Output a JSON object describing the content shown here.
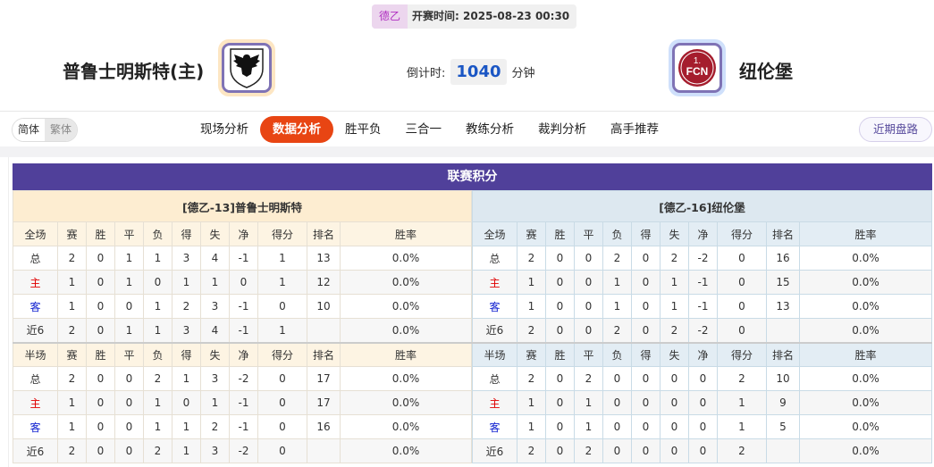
{
  "header": {
    "league": "德乙",
    "kickoff_label": "开赛时间:",
    "kickoff": "2025-08-23 00:30",
    "home": {
      "name": "普鲁士明斯特(主)",
      "logo": "eagle-shield-logo"
    },
    "away": {
      "name": "纽伦堡",
      "logo": "1fcn-logo",
      "logo_text": "1.FCN"
    },
    "countdown_label": "倒计时:",
    "countdown_value": "1040",
    "countdown_unit": "分钟"
  },
  "nav": {
    "lang": [
      "简体",
      "繁体"
    ],
    "tabs": [
      "现场分析",
      "数据分析",
      "胜平负",
      "三合一",
      "教练分析",
      "裁判分析",
      "高手推荐"
    ],
    "active_tab": "数据分析",
    "recent": "近期盘路"
  },
  "colors": {
    "accent": "#e84513",
    "title_bar": "#50409a",
    "home_label": "#e00000",
    "away_label": "#1020d0"
  },
  "standings": {
    "title": "联赛积分",
    "columns_full": [
      "全场",
      "赛",
      "胜",
      "平",
      "负",
      "得",
      "失",
      "净",
      "得分",
      "排名",
      "胜率"
    ],
    "columns_half": [
      "半场",
      "赛",
      "胜",
      "平",
      "负",
      "得",
      "失",
      "净",
      "得分",
      "排名",
      "胜率"
    ],
    "home": {
      "header": "[德乙-13]普鲁士明斯特",
      "full": [
        [
          "总",
          "2",
          "0",
          "1",
          "1",
          "3",
          "4",
          "-1",
          "1",
          "13",
          "0.0%"
        ],
        [
          "主",
          "1",
          "0",
          "1",
          "0",
          "1",
          "1",
          "0",
          "1",
          "12",
          "0.0%"
        ],
        [
          "客",
          "1",
          "0",
          "0",
          "1",
          "2",
          "3",
          "-1",
          "0",
          "10",
          "0.0%"
        ],
        [
          "近6",
          "2",
          "0",
          "1",
          "1",
          "3",
          "4",
          "-1",
          "1",
          "",
          "0.0%"
        ]
      ],
      "half": [
        [
          "总",
          "2",
          "0",
          "0",
          "2",
          "1",
          "3",
          "-2",
          "0",
          "17",
          "0.0%"
        ],
        [
          "主",
          "1",
          "0",
          "0",
          "1",
          "0",
          "1",
          "-1",
          "0",
          "17",
          "0.0%"
        ],
        [
          "客",
          "1",
          "0",
          "0",
          "1",
          "1",
          "2",
          "-1",
          "0",
          "16",
          "0.0%"
        ],
        [
          "近6",
          "2",
          "0",
          "0",
          "2",
          "1",
          "3",
          "-2",
          "0",
          "",
          "0.0%"
        ]
      ]
    },
    "away": {
      "header": "[德乙-16]纽伦堡",
      "full": [
        [
          "总",
          "2",
          "0",
          "0",
          "2",
          "0",
          "2",
          "-2",
          "0",
          "16",
          "0.0%"
        ],
        [
          "主",
          "1",
          "0",
          "0",
          "1",
          "0",
          "1",
          "-1",
          "0",
          "15",
          "0.0%"
        ],
        [
          "客",
          "1",
          "0",
          "0",
          "1",
          "0",
          "1",
          "-1",
          "0",
          "13",
          "0.0%"
        ],
        [
          "近6",
          "2",
          "0",
          "0",
          "2",
          "0",
          "2",
          "-2",
          "0",
          "",
          "0.0%"
        ]
      ],
      "half": [
        [
          "总",
          "2",
          "0",
          "2",
          "0",
          "0",
          "0",
          "0",
          "2",
          "10",
          "0.0%"
        ],
        [
          "主",
          "1",
          "0",
          "1",
          "0",
          "0",
          "0",
          "0",
          "1",
          "9",
          "0.0%"
        ],
        [
          "客",
          "1",
          "0",
          "1",
          "0",
          "0",
          "0",
          "0",
          "1",
          "5",
          "0.0%"
        ],
        [
          "近6",
          "2",
          "0",
          "2",
          "0",
          "0",
          "0",
          "0",
          "2",
          "",
          "0.0%"
        ]
      ]
    }
  }
}
